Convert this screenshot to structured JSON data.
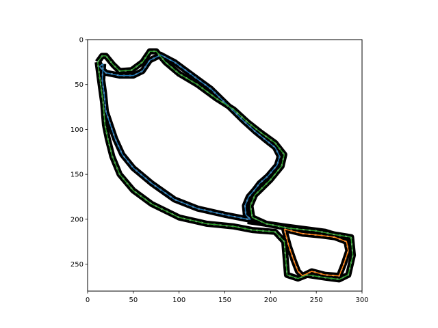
{
  "chart_data": {
    "type": "line",
    "title": "",
    "xlabel": "",
    "ylabel": "",
    "xlim": [
      0,
      300
    ],
    "ylim": [
      0,
      280
    ],
    "y_inverted": true,
    "grid": false,
    "xticks": [
      "0",
      "50",
      "100",
      "150",
      "200",
      "250",
      "300"
    ],
    "yticks": [
      "0",
      "50",
      "100",
      "150",
      "200",
      "250"
    ],
    "background_image": "binary occupancy map (black track pixels on white)",
    "series": [
      {
        "color": "#1f77b4",
        "x": [
          17,
          13,
          20,
          35,
          50,
          60,
          68,
          80,
          95,
          115,
          135,
          150,
          160,
          170,
          183,
          195,
          205,
          210,
          207,
          197,
          188,
          182,
          176,
          172,
          173,
          178,
          175,
          165,
          150,
          120,
          95,
          70,
          50,
          38,
          30,
          25,
          20,
          18,
          16,
          17
        ],
        "y": [
          27,
          30,
          37,
          40,
          40,
          35,
          23,
          17,
          25,
          40,
          55,
          70,
          80,
          90,
          102,
          112,
          120,
          130,
          140,
          152,
          160,
          168,
          175,
          185,
          195,
          200,
          200,
          198,
          195,
          188,
          178,
          160,
          143,
          128,
          110,
          95,
          80,
          60,
          45,
          27
        ]
      },
      {
        "color": "#ff7f0e",
        "x": [
          215,
          235,
          255,
          270,
          283,
          285,
          280,
          275,
          260,
          245,
          235,
          230,
          225,
          220,
          215
        ],
        "y": [
          211,
          216,
          218,
          220,
          225,
          235,
          250,
          263,
          262,
          258,
          263,
          258,
          245,
          230,
          211
        ]
      },
      {
        "color": "#2ca02c",
        "x": [
          11,
          16,
          20,
          28,
          35,
          48,
          60,
          68,
          75,
          85,
          100,
          120,
          140,
          160,
          175,
          190,
          205,
          215,
          212,
          200,
          190,
          183,
          178,
          180,
          195,
          220,
          250,
          270,
          288,
          290,
          285,
          275,
          260,
          240,
          230,
          218,
          215,
          205,
          180,
          160,
          130,
          100,
          70,
          50,
          35,
          27,
          22,
          19,
          17,
          14,
          11
        ],
        "y": [
          25,
          18,
          18,
          28,
          35,
          34,
          25,
          13,
          13,
          25,
          38,
          50,
          65,
          78,
          92,
          104,
          115,
          128,
          141,
          156,
          166,
          173,
          185,
          198,
          205,
          210,
          213,
          217,
          220,
          240,
          262,
          267,
          265,
          262,
          266,
          262,
          225,
          214,
          212,
          208,
          205,
          198,
          183,
          168,
          150,
          130,
          110,
          95,
          70,
          48,
          25
        ]
      }
    ]
  }
}
